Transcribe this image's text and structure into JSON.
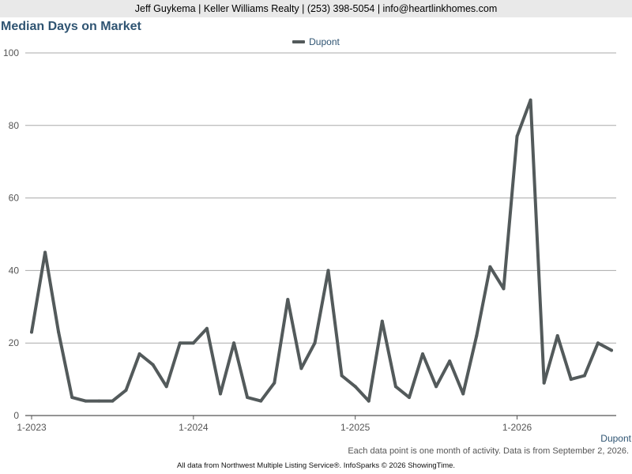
{
  "header": {
    "contact": "Jeff Guykema | Keller Williams Realty | (253) 398-5054 | info@heartlinkhomes.com"
  },
  "colors": {
    "line": "#535a5b",
    "title": "#2f5472",
    "grid": "#aaaaaa",
    "header_bg": "#e9e9e9"
  },
  "chart_data": {
    "type": "line",
    "title": "Median Days on Market",
    "legend_position": "top-center",
    "grid": true,
    "ylim": [
      0,
      100
    ],
    "y_ticks": [
      0,
      20,
      40,
      60,
      80,
      100
    ],
    "x_tick_labels": [
      "1-2023",
      "1-2024",
      "1-2025",
      "1-2026"
    ],
    "x_tick_months": [
      "2023-01",
      "2024-01",
      "2025-01",
      "2026-01"
    ],
    "series": [
      {
        "name": "Dupont",
        "color": "#535a5b",
        "x": [
          "2023-01",
          "2023-02",
          "2023-03",
          "2023-04",
          "2023-05",
          "2023-06",
          "2023-07",
          "2023-08",
          "2023-09",
          "2023-10",
          "2023-11",
          "2023-12",
          "2024-01",
          "2024-02",
          "2024-03",
          "2024-04",
          "2024-05",
          "2024-06",
          "2024-07",
          "2024-08",
          "2024-09",
          "2024-10",
          "2024-11",
          "2024-12",
          "2025-01",
          "2025-02",
          "2025-03",
          "2025-04",
          "2025-05",
          "2025-06",
          "2025-07",
          "2025-08",
          "2025-09",
          "2025-10",
          "2025-11",
          "2025-12",
          "2026-01",
          "2026-02",
          "2026-03",
          "2026-04",
          "2026-05",
          "2026-06",
          "2026-07",
          "2026-08"
        ],
        "values": [
          23,
          45,
          23,
          5,
          4,
          4,
          4,
          7,
          17,
          14,
          8,
          20,
          20,
          24,
          6,
          20,
          5,
          4,
          9,
          32,
          13,
          20,
          40,
          11,
          8,
          4,
          26,
          8,
          5,
          17,
          8,
          15,
          6,
          22,
          41,
          35,
          77,
          87,
          9,
          22,
          10,
          11,
          20,
          18
        ]
      }
    ]
  },
  "side_label": "Dupont",
  "note": "Each data point is one month of activity. Data is from September 2, 2026.",
  "footer": "All data from Northwest Multiple Listing Service®. InfoSparks © 2026 ShowingTime."
}
